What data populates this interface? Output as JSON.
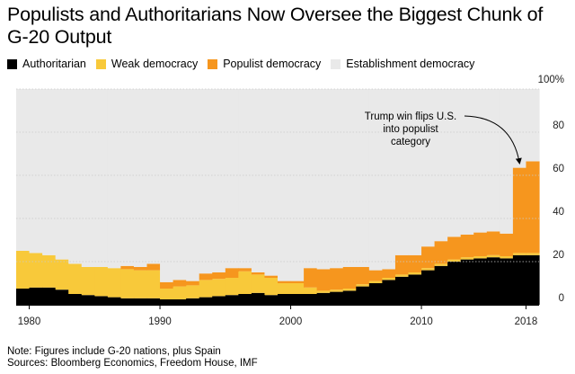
{
  "title": "Populists and Authoritarians Now Oversee the Biggest Chunk of G-20 Output",
  "legend": [
    {
      "label": "Authoritarian",
      "color": "#000000"
    },
    {
      "label": "Weak democracy",
      "color": "#f8c93a"
    },
    {
      "label": "Populist democracy",
      "color": "#f6961e"
    },
    {
      "label": "Establishment democracy",
      "color": "#e9e9e9"
    }
  ],
  "note": "Note: Figures include G-20 nations, plus Spain",
  "sources": "Sources: Bloomberg Economics, Freedom House, IMF",
  "chart_data": {
    "type": "area",
    "stacked": true,
    "step": true,
    "title": "Populists and Authoritarians Now Oversee the Biggest Chunk of G-20 Output",
    "xlabel": "",
    "ylabel": "",
    "xlim": [
      1979,
      2019
    ],
    "ylim": [
      0,
      100
    ],
    "x_ticks": [
      1980,
      1990,
      2000,
      2010,
      2018
    ],
    "y_ticks": [
      0,
      20,
      40,
      60,
      80,
      100
    ],
    "y_tick_labels": [
      "0",
      "20",
      "40",
      "60",
      "80",
      "100%"
    ],
    "x": [
      1979,
      1980,
      1981,
      1982,
      1983,
      1984,
      1985,
      1986,
      1987,
      1988,
      1989,
      1990,
      1991,
      1992,
      1993,
      1994,
      1995,
      1996,
      1997,
      1998,
      1999,
      2000,
      2001,
      2002,
      2003,
      2004,
      2005,
      2006,
      2007,
      2008,
      2009,
      2010,
      2011,
      2012,
      2013,
      2014,
      2015,
      2016,
      2017,
      2018
    ],
    "series": [
      {
        "name": "Authoritarian",
        "color": "#000000",
        "values": [
          7.5,
          8,
          8,
          7,
          5,
          4.5,
          4,
          3.5,
          3,
          3,
          3,
          2.5,
          2.5,
          3,
          3.5,
          4,
          4.5,
          5,
          5.5,
          4.5,
          5,
          5,
          5,
          5.5,
          6,
          6.5,
          8.5,
          10,
          11.5,
          13,
          14,
          16,
          18,
          20,
          21,
          21.5,
          22,
          21.5,
          23,
          23
        ]
      },
      {
        "name": "Weak democracy",
        "color": "#f8c93a",
        "values": [
          17.5,
          16,
          15,
          14,
          14,
          13,
          13.5,
          13.5,
          13.5,
          13,
          13,
          5,
          6,
          6,
          8,
          8,
          8,
          10.5,
          8.5,
          8,
          5,
          5,
          3,
          1,
          1,
          1,
          1,
          1,
          1,
          1,
          1,
          1,
          1,
          1,
          1,
          1,
          1,
          1,
          1,
          1
        ]
      },
      {
        "name": "Populist democracy",
        "color": "#f6961e",
        "values": [
          0,
          0,
          0,
          0,
          0,
          0,
          0,
          0,
          1.5,
          1.5,
          3,
          3,
          3,
          2,
          3,
          3,
          4.5,
          1.5,
          1,
          1,
          1,
          1,
          9,
          10,
          10,
          10,
          8,
          5,
          4,
          9,
          8,
          10,
          10.5,
          10.5,
          10.5,
          11,
          11,
          10.5,
          39.5,
          42.5
        ]
      },
      {
        "name": "Establishment democracy",
        "color": "#e9e9e9",
        "values": [
          75,
          76,
          77,
          79,
          81,
          82.5,
          82.5,
          83,
          82,
          82.5,
          81,
          89.5,
          88.5,
          89,
          85.5,
          85,
          83,
          83,
          85,
          86.5,
          89,
          89,
          83,
          83.5,
          83,
          82.5,
          82.5,
          84,
          83.5,
          77,
          77,
          73,
          70.5,
          68.5,
          67.5,
          66.5,
          66,
          67,
          36.5,
          33.5
        ]
      }
    ],
    "annotation": {
      "lines": [
        "Trump win flips U.S.",
        "into populist",
        "category"
      ],
      "target_year": 2017
    }
  }
}
